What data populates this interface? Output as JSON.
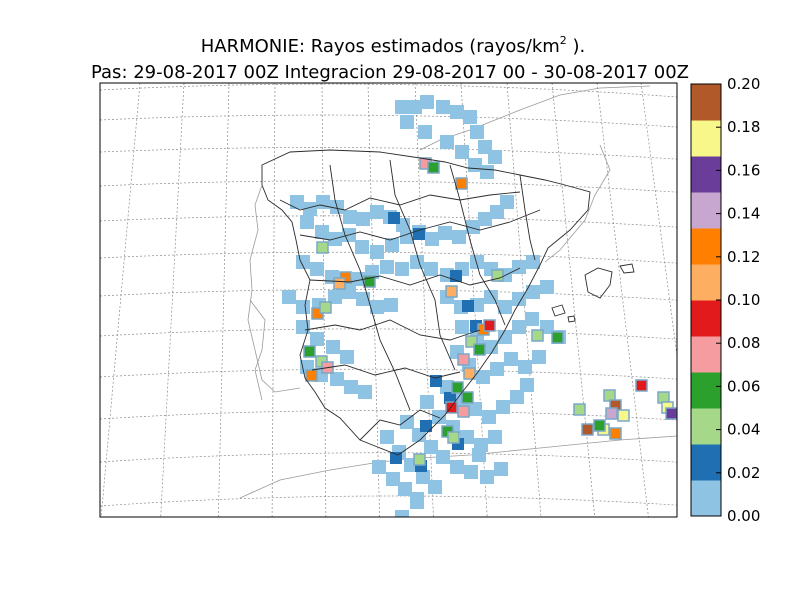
{
  "title": {
    "line1_prefix": "HARMONIE: Rayos estimados  (rayos/km",
    "line1_sup": "2",
    "line1_suffix": " ).",
    "line2": "Pas: 29-08-2017 00Z Integracion 29-08-2017 00 - 30-08-2017 00Z"
  },
  "colorbar": {
    "ticks": [
      "0.00",
      "0.02",
      "0.04",
      "0.06",
      "0.08",
      "0.10",
      "0.12",
      "0.14",
      "0.16",
      "0.18",
      "0.20"
    ],
    "range": [
      0,
      0.2
    ],
    "colors": [
      "#8fc3e3",
      "#1f6fb2",
      "#a6d88a",
      "#2ca02c",
      "#f59ca0",
      "#e31a1c",
      "#fdae61",
      "#ff7f00",
      "#c7a6cf",
      "#6a3d9a",
      "#f7f78a",
      "#b15928"
    ]
  },
  "map": {
    "region": "Iberian Peninsula and Balearic Islands",
    "units": "rayos/km2",
    "land_line_color": "#333333",
    "coast_line_color": "#9a9a9a",
    "grid": "dotted graticule"
  },
  "chart_data": {
    "type": "heatmap",
    "title": "HARMONIE: Rayos estimados  (rayos/km2 ).",
    "subtitle": "Pas: 29-08-2017 00Z Integracion 29-08-2017 00 - 30-08-2017 00Z",
    "value_range": [
      0,
      0.2
    ]
  }
}
